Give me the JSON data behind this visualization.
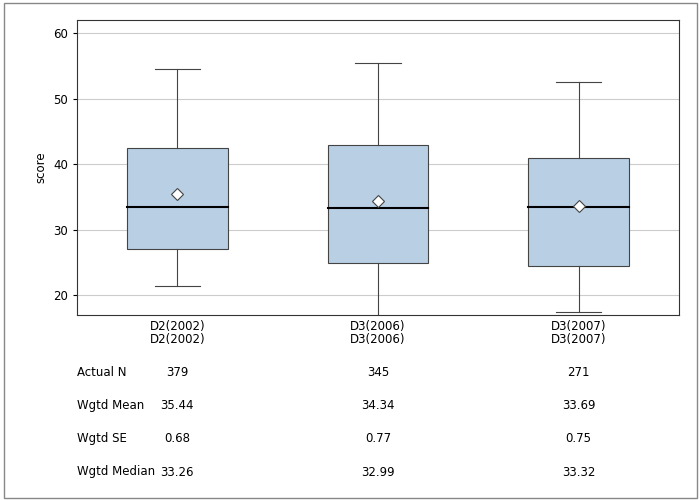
{
  "categories": [
    "D2(2002)",
    "D3(2006)",
    "D3(2007)"
  ],
  "boxes": [
    {
      "q1": 27.0,
      "median": 33.5,
      "q3": 42.5,
      "whisker_low": 21.5,
      "whisker_high": 54.5,
      "mean": 35.44
    },
    {
      "q1": 25.0,
      "median": 33.3,
      "q3": 43.0,
      "whisker_low": 14.5,
      "whisker_high": 55.5,
      "mean": 34.34
    },
    {
      "q1": 24.5,
      "median": 33.5,
      "q3": 41.0,
      "whisker_low": 17.5,
      "whisker_high": 52.5,
      "mean": 33.69
    }
  ],
  "ylabel": "score",
  "ylim": [
    17,
    62
  ],
  "yticks": [
    20,
    30,
    40,
    50,
    60
  ],
  "box_color": "#b8cfe4",
  "box_edge_color": "#444444",
  "median_color": "#000000",
  "whisker_color": "#444444",
  "mean_marker": "D",
  "mean_marker_color": "white",
  "mean_marker_edge_color": "#444444",
  "table_labels": [
    "Actual N",
    "Wgtd Mean",
    "Wgtd SE",
    "Wgtd Median"
  ],
  "table_values": [
    [
      "379",
      "345",
      "271"
    ],
    [
      "35.44",
      "34.34",
      "33.69"
    ],
    [
      "0.68",
      "0.77",
      "0.75"
    ],
    [
      "33.26",
      "32.99",
      "33.32"
    ]
  ],
  "background_color": "#ffffff",
  "grid_color": "#cccccc",
  "box_width": 0.5,
  "positions": [
    1,
    2,
    3
  ],
  "fig_bg_color": "#ffffff"
}
